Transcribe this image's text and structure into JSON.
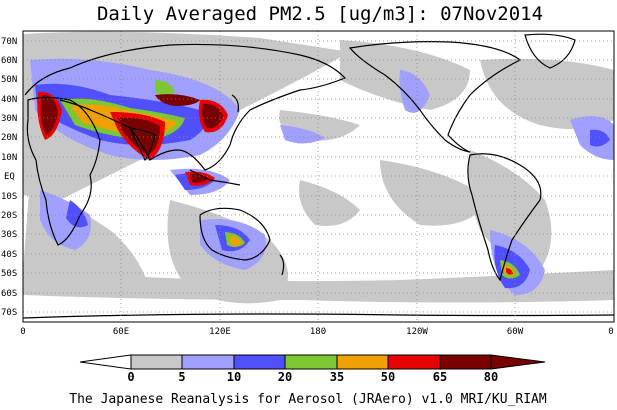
{
  "title": "Daily Averaged PM2.5 [ug/m3]: 07Nov2014",
  "footer": "The Japanese Reanalysis for Aerosol (JRAero) v1.0 MRI/KU_RIAM",
  "lat_labels": [
    "70N",
    "60N",
    "50N",
    "40N",
    "30N",
    "20N",
    "10N",
    "EQ",
    "10S",
    "20S",
    "30S",
    "40S",
    "50S",
    "60S",
    "70S"
  ],
  "lon_labels": [
    "0",
    "60E",
    "120E",
    "180",
    "120W",
    "60W",
    "0"
  ],
  "colorbar": {
    "labels": [
      "0",
      "5",
      "10",
      "20",
      "35",
      "50",
      "65",
      "80"
    ],
    "colors": [
      "#ffffff",
      "#c8c8c8",
      "#a0a0ff",
      "#5050ff",
      "#7dc832",
      "#f0a000",
      "#e60000",
      "#780000"
    ]
  }
}
